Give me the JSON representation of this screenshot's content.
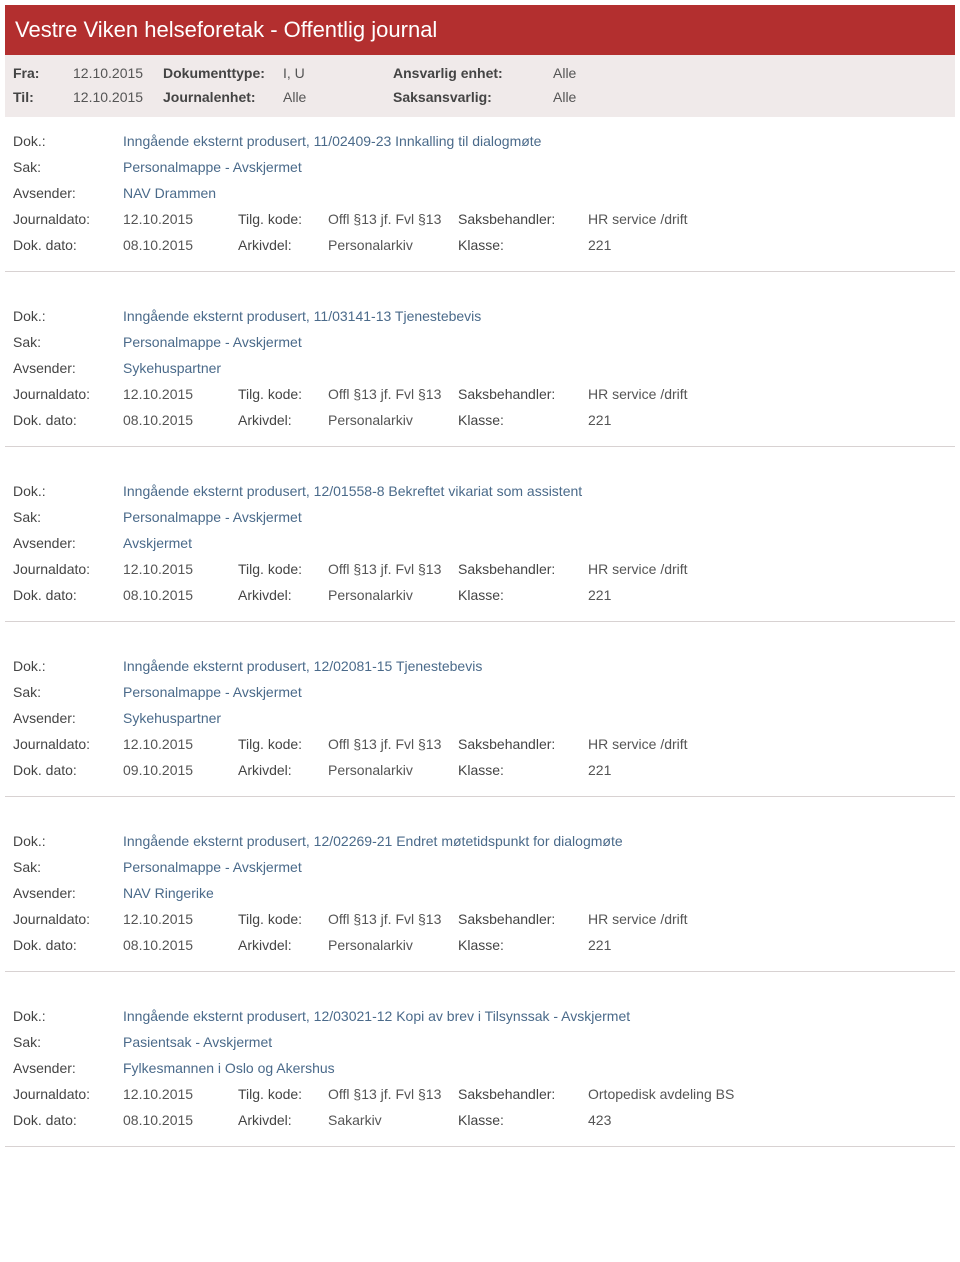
{
  "header": {
    "title": "Vestre Viken helseforetak - Offentlig journal"
  },
  "meta": {
    "fra_label": "Fra:",
    "fra_value": "12.10.2015",
    "til_label": "Til:",
    "til_value": "12.10.2015",
    "doktype_label": "Dokumenttype:",
    "doktype_value": "I, U",
    "journalenhet_label": "Journalenhet:",
    "journalenhet_value": "Alle",
    "ansvarlig_label": "Ansvarlig enhet:",
    "ansvarlig_value": "Alle",
    "saksansvarlig_label": "Saksansvarlig:",
    "saksansvarlig_value": "Alle"
  },
  "labels": {
    "dok": "Dok.:",
    "sak": "Sak:",
    "avsender": "Avsender:",
    "journaldato": "Journaldato:",
    "dokdato": "Dok. dato:",
    "tilgkode": "Tilg. kode:",
    "arkivdel": "Arkivdel:",
    "saksbehandler": "Saksbehandler:",
    "klasse": "Klasse:"
  },
  "entries": [
    {
      "dok": "Inngående eksternt produsert, 11/02409-23 Innkalling til dialogmøte",
      "sak": "Personalmappe - Avskjermet",
      "avsender": "NAV Drammen",
      "journaldato": "12.10.2015",
      "dokdato": "08.10.2015",
      "tilgkode": "Offl §13 jf. Fvl §13",
      "arkivdel": "Personalarkiv",
      "saksbehandler": "HR service /drift",
      "klasse": "221"
    },
    {
      "dok": "Inngående eksternt produsert, 11/03141-13 Tjenestebevis",
      "sak": "Personalmappe - Avskjermet",
      "avsender": "Sykehuspartner",
      "journaldato": "12.10.2015",
      "dokdato": "08.10.2015",
      "tilgkode": "Offl §13 jf. Fvl §13",
      "arkivdel": "Personalarkiv",
      "saksbehandler": "HR service /drift",
      "klasse": "221"
    },
    {
      "dok": "Inngående eksternt produsert, 12/01558-8 Bekreftet vikariat som assistent",
      "sak": "Personalmappe - Avskjermet",
      "avsender": "Avskjermet",
      "journaldato": "12.10.2015",
      "dokdato": "08.10.2015",
      "tilgkode": "Offl §13 jf. Fvl §13",
      "arkivdel": "Personalarkiv",
      "saksbehandler": "HR service /drift",
      "klasse": "221"
    },
    {
      "dok": "Inngående eksternt produsert, 12/02081-15 Tjenestebevis",
      "sak": "Personalmappe - Avskjermet",
      "avsender": "Sykehuspartner",
      "journaldato": "12.10.2015",
      "dokdato": "09.10.2015",
      "tilgkode": "Offl §13 jf. Fvl §13",
      "arkivdel": "Personalarkiv",
      "saksbehandler": "HR service /drift",
      "klasse": "221"
    },
    {
      "dok": "Inngående eksternt produsert, 12/02269-21 Endret møtetidspunkt for dialogmøte",
      "sak": "Personalmappe - Avskjermet",
      "avsender": "NAV Ringerike",
      "journaldato": "12.10.2015",
      "dokdato": "08.10.2015",
      "tilgkode": "Offl §13 jf. Fvl §13",
      "arkivdel": "Personalarkiv",
      "saksbehandler": "HR service /drift",
      "klasse": "221"
    },
    {
      "dok": "Inngående eksternt produsert, 12/03021-12 Kopi av brev i Tilsynssak - Avskjermet",
      "sak": "Pasientsak - Avskjermet",
      "avsender": "Fylkesmannen i Oslo og Akershus",
      "journaldato": "12.10.2015",
      "dokdato": "08.10.2015",
      "tilgkode": "Offl §13 jf. Fvl §13",
      "arkivdel": "Sakarkiv",
      "saksbehandler": "Ortopedisk avdeling BS",
      "klasse": "423"
    }
  ],
  "colors": {
    "header_bg": "#b32f2f",
    "meta_bg": "#f0eaea",
    "divider": "#d8d2d2",
    "link": "#4a6a8a"
  }
}
